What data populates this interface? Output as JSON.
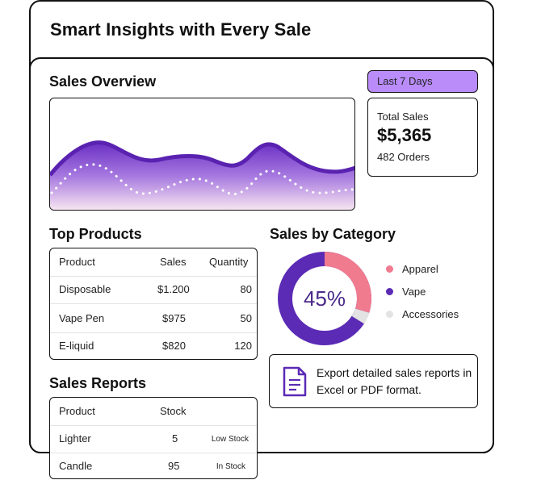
{
  "header": {
    "title": "Smart Insights with Every Sale"
  },
  "overview": {
    "title": "Sales Overview",
    "range_label": "Last 7 Days",
    "total_label": "Total Sales",
    "total_value": "$5,365",
    "orders_label": "482 Orders"
  },
  "top_products": {
    "title": "Top Products",
    "columns": [
      "Product",
      "Sales",
      "Quantity"
    ],
    "rows": [
      [
        "Disposable",
        "$1.200",
        "80"
      ],
      [
        "Vape Pen",
        "$975",
        "50"
      ],
      [
        "E-liquid",
        "$820",
        "120"
      ]
    ]
  },
  "category": {
    "title": "Sales by Category",
    "center_label": "45%",
    "legend": [
      {
        "label": "Apparel",
        "color": "#f07a8e"
      },
      {
        "label": "Vape",
        "color": "#5b2bb5"
      },
      {
        "label": "Accessories",
        "color": "#e3e3e3"
      }
    ]
  },
  "reports": {
    "title": "Sales Reports",
    "columns": [
      "Product",
      "Stock",
      ""
    ],
    "rows": [
      [
        "Lighter",
        "5",
        "Low Stock"
      ],
      [
        "Candle",
        "95",
        "In Stock"
      ]
    ]
  },
  "export": {
    "icon": "document-icon",
    "text": "Export detailed sales reports in Excel or PDF format."
  },
  "colors": {
    "accent": "#b98cfa",
    "primary": "#5b2bb5",
    "pink": "#f07a8e"
  }
}
